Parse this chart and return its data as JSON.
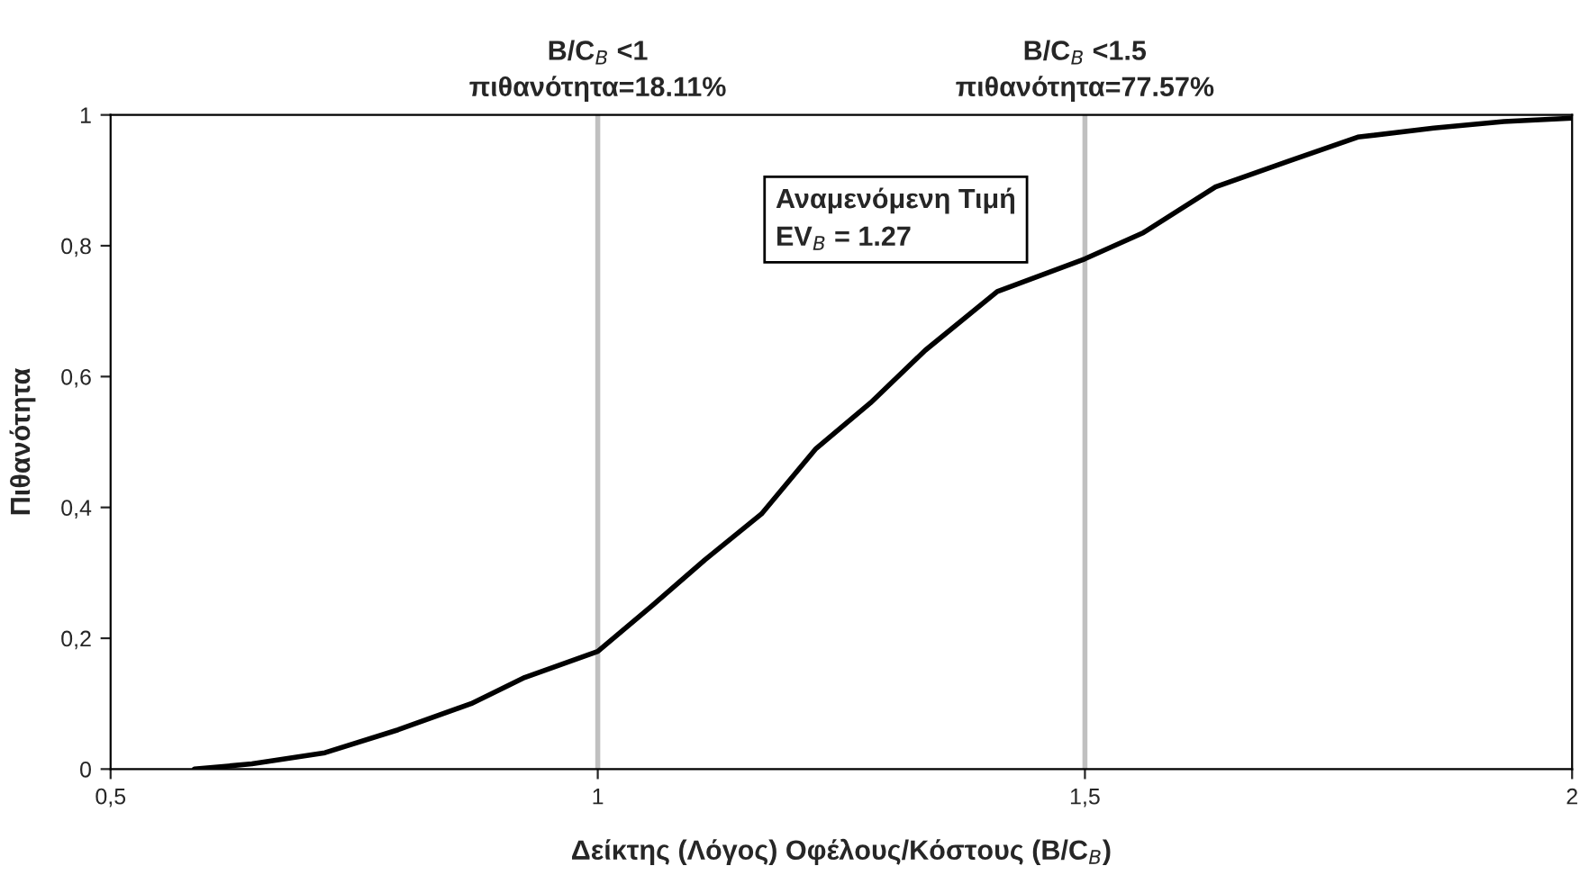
{
  "chart_data": {
    "type": "line",
    "xlabel": "Δείκτης (Λόγος) Οφέλους/Κόστους (B/C$_{B}$)",
    "ylabel": "Πιθανότητα",
    "x": [
      0.586,
      0.645,
      0.72,
      0.795,
      0.87,
      0.925,
      1,
      1.056,
      1.11,
      1.168,
      1.224,
      1.28,
      1.336,
      1.41,
      1.5,
      1.56,
      1.634,
      1.71,
      1.78,
      1.858,
      1.93,
      2
    ],
    "series": [
      {
        "color": "#000000",
        "values": [
          0,
          0.008,
          0.025,
          0.06,
          0.1,
          0.14,
          0.18,
          0.25,
          0.32,
          0.39,
          0.49,
          0.56,
          0.64,
          0.73,
          0.78,
          0.82,
          0.89,
          0.93,
          0.966,
          0.98,
          0.99,
          0.995
        ]
      }
    ],
    "xlim": [
      0.5,
      2
    ],
    "ylim": [
      0,
      1
    ],
    "xticks": [
      {
        "value": 0.5,
        "label": "0,5"
      },
      1,
      {
        "value": 1.5,
        "label": "1,5"
      },
      2
    ],
    "yticks": [
      0,
      {
        "value": 0.2,
        "label": "0,2"
      },
      {
        "value": 0.4,
        "label": "0,4"
      },
      {
        "value": 0.6,
        "label": "0,6"
      },
      {
        "value": 0.8,
        "label": "0,8"
      },
      1
    ],
    "ref_lines": [
      {
        "axis": "x",
        "value": 1,
        "label": "B/C$_{B}$ <1\nπιθανότητα=18.11%",
        "color": "#c0c0c0"
      },
      {
        "axis": "x",
        "value": 1.5,
        "label": "B/C$_{B}$ <1.5\nπιθανότητα=77.57%",
        "color": "#c0c0c0"
      }
    ],
    "annotations": [
      "Αναμενόμενη Τιμή\nEV$_{B}$ = 1.27"
    ],
    "grid": false,
    "legend": false,
    "marker": "none",
    "line_style": "solid"
  }
}
